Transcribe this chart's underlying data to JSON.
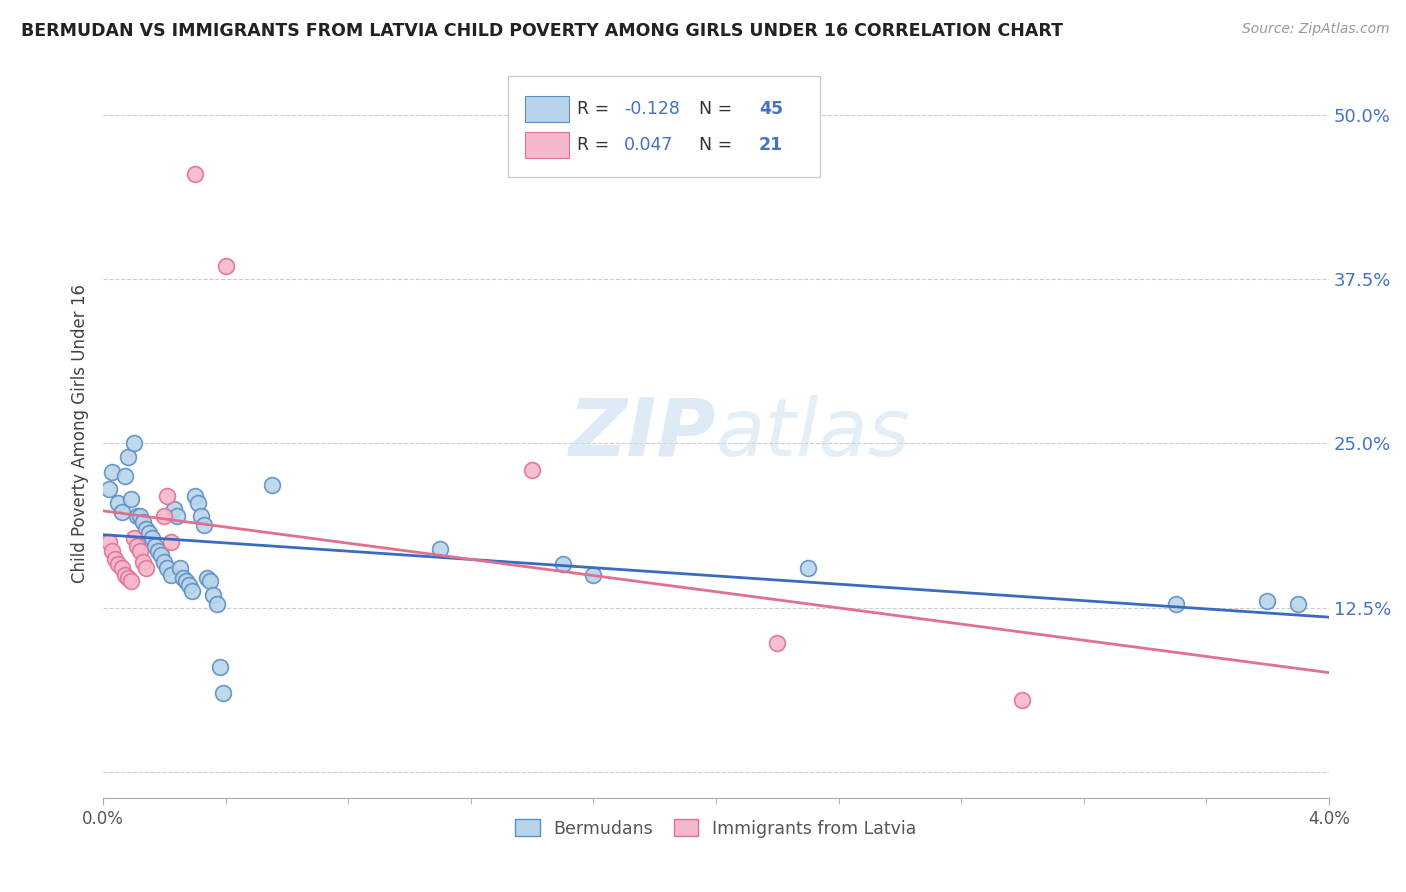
{
  "title": "BERMUDAN VS IMMIGRANTS FROM LATVIA CHILD POVERTY AMONG GIRLS UNDER 16 CORRELATION CHART",
  "source": "Source: ZipAtlas.com",
  "ylabel": "Child Poverty Among Girls Under 16",
  "y_ticks": [
    0.0,
    0.125,
    0.25,
    0.375,
    0.5
  ],
  "y_tick_labels": [
    "",
    "12.5%",
    "25.0%",
    "37.5%",
    "50.0%"
  ],
  "x_range": [
    0.0,
    0.04
  ],
  "y_range": [
    -0.02,
    0.535
  ],
  "bermudans_R": -0.128,
  "bermudans_N": 45,
  "latvia_R": 0.047,
  "latvia_N": 21,
  "bermudans_color": "#b8d4ea",
  "bermudans_edge_color": "#5b8ec4",
  "bermudans_line_color": "#3a6bbf",
  "latvia_color": "#f4b8ca",
  "latvia_edge_color": "#e07090",
  "latvia_line_color": "#e07090",
  "bermudans_scatter": [
    [
      0.0002,
      0.215
    ],
    [
      0.0003,
      0.228
    ],
    [
      0.0005,
      0.205
    ],
    [
      0.0006,
      0.198
    ],
    [
      0.0007,
      0.225
    ],
    [
      0.0008,
      0.24
    ],
    [
      0.0009,
      0.208
    ],
    [
      0.001,
      0.25
    ],
    [
      0.0011,
      0.195
    ],
    [
      0.0012,
      0.195
    ],
    [
      0.0013,
      0.19
    ],
    [
      0.0014,
      0.185
    ],
    [
      0.0015,
      0.182
    ],
    [
      0.0016,
      0.178
    ],
    [
      0.0017,
      0.172
    ],
    [
      0.0018,
      0.168
    ],
    [
      0.0019,
      0.165
    ],
    [
      0.002,
      0.16
    ],
    [
      0.0021,
      0.155
    ],
    [
      0.0022,
      0.15
    ],
    [
      0.0023,
      0.2
    ],
    [
      0.0024,
      0.195
    ],
    [
      0.0025,
      0.155
    ],
    [
      0.0026,
      0.148
    ],
    [
      0.0027,
      0.145
    ],
    [
      0.0028,
      0.142
    ],
    [
      0.0029,
      0.138
    ],
    [
      0.003,
      0.21
    ],
    [
      0.0031,
      0.205
    ],
    [
      0.0032,
      0.195
    ],
    [
      0.0033,
      0.188
    ],
    [
      0.0034,
      0.148
    ],
    [
      0.0035,
      0.145
    ],
    [
      0.0036,
      0.135
    ],
    [
      0.0037,
      0.128
    ],
    [
      0.0038,
      0.08
    ],
    [
      0.0039,
      0.06
    ],
    [
      0.0055,
      0.218
    ],
    [
      0.011,
      0.17
    ],
    [
      0.015,
      0.158
    ],
    [
      0.016,
      0.15
    ],
    [
      0.023,
      0.155
    ],
    [
      0.035,
      0.128
    ],
    [
      0.038,
      0.13
    ],
    [
      0.039,
      0.128
    ]
  ],
  "latvia_scatter": [
    [
      0.0002,
      0.175
    ],
    [
      0.0003,
      0.168
    ],
    [
      0.0004,
      0.162
    ],
    [
      0.0005,
      0.158
    ],
    [
      0.0006,
      0.155
    ],
    [
      0.0007,
      0.15
    ],
    [
      0.0008,
      0.148
    ],
    [
      0.0009,
      0.145
    ],
    [
      0.001,
      0.178
    ],
    [
      0.0011,
      0.172
    ],
    [
      0.0012,
      0.168
    ],
    [
      0.0013,
      0.16
    ],
    [
      0.0014,
      0.155
    ],
    [
      0.002,
      0.195
    ],
    [
      0.0021,
      0.21
    ],
    [
      0.0022,
      0.175
    ],
    [
      0.003,
      0.455
    ],
    [
      0.004,
      0.385
    ],
    [
      0.014,
      0.23
    ],
    [
      0.022,
      0.098
    ],
    [
      0.03,
      0.055
    ]
  ],
  "watermark_zip": "ZIP",
  "watermark_atlas": "atlas",
  "legend_items": [
    {
      "R": -0.128,
      "N": 45,
      "color": "#b8d4ea",
      "edge": "#5b8ec4"
    },
    {
      "R": 0.047,
      "N": 21,
      "color": "#f4b8ca",
      "edge": "#e07090"
    }
  ]
}
